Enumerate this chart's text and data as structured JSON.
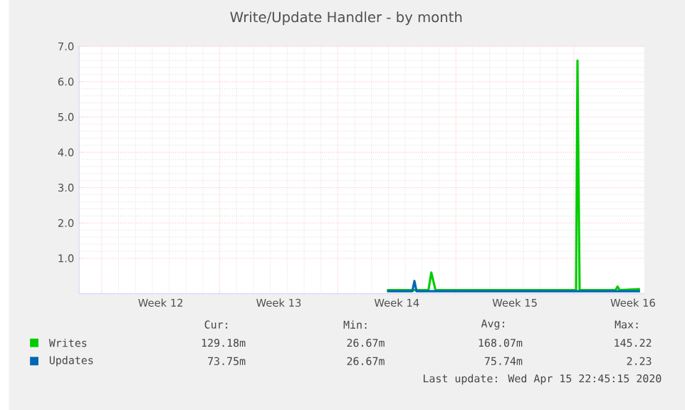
{
  "chart_data": {
    "type": "line",
    "title": "Write/Update Handler - by month",
    "xlim": [
      "2020-03-13T16:00",
      "2020-04-16T04:00"
    ],
    "ylim": [
      0,
      7
    ],
    "xticks": [
      {
        "value": "2020-03-15",
        "label": null
      },
      {
        "value": "2020-03-22",
        "label": null
      },
      {
        "value": "2020-03-29",
        "label": null
      },
      {
        "value": "2020-04-05",
        "label": null
      },
      {
        "value": "2020-04-12",
        "label": null
      },
      {
        "value": "2020-03-18T12:00",
        "label": "Week 12"
      },
      {
        "value": "2020-03-25T12:00",
        "label": "Week 13"
      },
      {
        "value": "2020-04-01T12:00",
        "label": "Week 14"
      },
      {
        "value": "2020-04-08T12:00",
        "label": "Week 15"
      },
      {
        "value": "2020-04-15T12:00",
        "label": "Week 16"
      }
    ],
    "yticks": [
      {
        "value": 1,
        "label": "1.0"
      },
      {
        "value": 2,
        "label": "2.0"
      },
      {
        "value": 3,
        "label": "3.0"
      },
      {
        "value": 4,
        "label": "4.0"
      },
      {
        "value": 5,
        "label": "5.0"
      },
      {
        "value": 6,
        "label": "6.0"
      },
      {
        "value": 7,
        "label": "7.0"
      }
    ],
    "grid": true,
    "legend": "bottom",
    "series": [
      {
        "name": "Writes",
        "color": "#00cc00",
        "x": [
          "2020-03-31T22:00",
          "2020-04-03T09:00",
          "2020-04-03T13:00",
          "2020-04-03T19:00",
          "2020-04-12T03:00",
          "2020-04-12T05:00",
          "2020-04-12T08:00",
          "2020-04-14T11:00",
          "2020-04-14T14:00",
          "2020-04-14T17:00",
          "2020-04-15T22:00"
        ],
        "values": [
          0.1,
          0.1,
          0.6,
          0.1,
          0.1,
          6.6,
          0.1,
          0.1,
          0.2,
          0.1,
          0.13
        ]
      },
      {
        "name": "Updates",
        "color": "#0066b3",
        "x": [
          "2020-03-31T22:00",
          "2020-04-02T10:00",
          "2020-04-02T13:00",
          "2020-04-02T16:00",
          "2020-04-15T22:00"
        ],
        "values": [
          0.07,
          0.07,
          0.36,
          0.07,
          0.07
        ]
      }
    ],
    "annotations": [
      "Cur:",
      "Min:",
      "Avg:",
      "Max:",
      "129.18m",
      "26.67m",
      "168.07m",
      "145.22",
      "73.75m",
      "26.67m",
      "75.74m",
      "2.23",
      "Last update: Wed Apr 15 22:45:15 2020"
    ]
  }
}
